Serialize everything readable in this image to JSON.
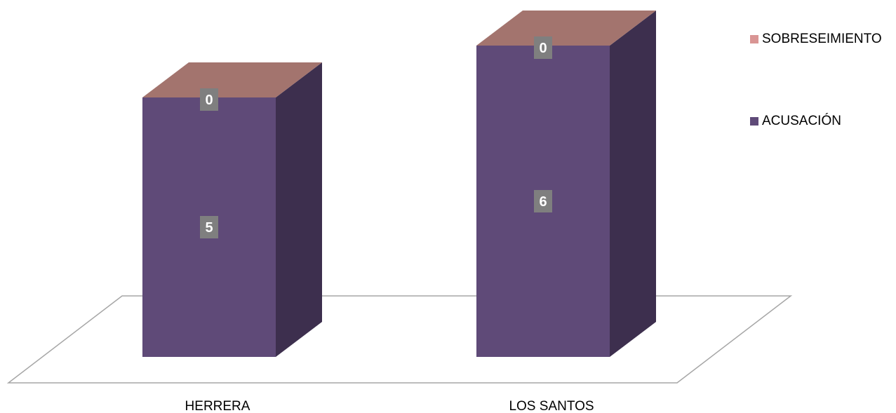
{
  "chart_data": {
    "type": "bar",
    "stacked": true,
    "three_d": true,
    "categories": [
      "HERRERA",
      "LOS SANTOS"
    ],
    "series": [
      {
        "name": "ACUSACIÓN",
        "values": [
          5,
          6
        ],
        "color": "#5F4A78"
      },
      {
        "name": "SOBRESEIMIENTO",
        "values": [
          0,
          0
        ],
        "color": "#D99594"
      }
    ],
    "title": "",
    "xlabel": "",
    "ylabel": "",
    "grid": false,
    "legend_position": "right"
  },
  "legend": [
    {
      "label": "SOBRESEIMIENTO",
      "color": "#D99594"
    },
    {
      "label": "ACUSACIÓN",
      "color": "#5F4A78"
    }
  ]
}
